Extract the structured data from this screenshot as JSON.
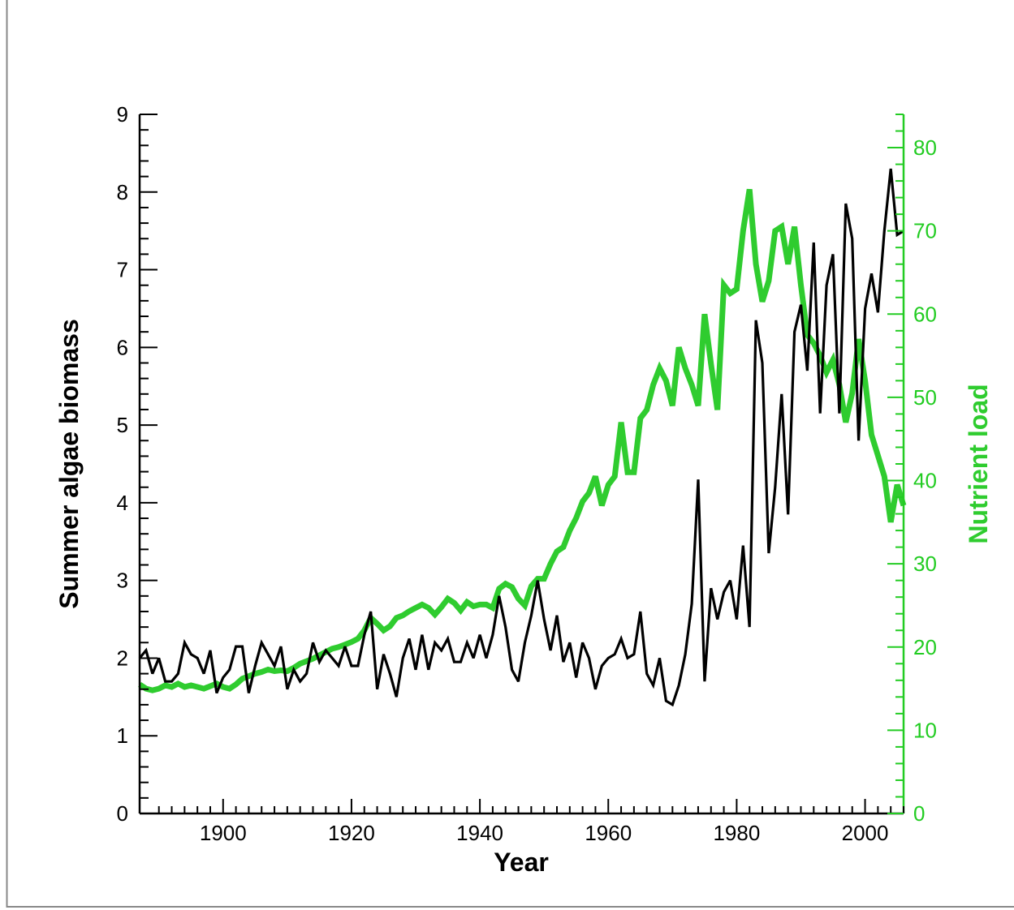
{
  "chart_data": {
    "type": "line",
    "title": "",
    "xlabel": "Year",
    "ylabel": "Summer algae biomass",
    "y2label": "Nutrient load",
    "xlim": [
      1887,
      2006
    ],
    "ylim": [
      0,
      9
    ],
    "y2lim": [
      0,
      84
    ],
    "x_ticks": [
      1900,
      1920,
      1940,
      1960,
      1980,
      2000
    ],
    "y_ticks": [
      0,
      1,
      2,
      3,
      4,
      5,
      6,
      7,
      8,
      9
    ],
    "y2_ticks": [
      0,
      10,
      20,
      30,
      40,
      50,
      60,
      70,
      80
    ],
    "grid": false,
    "legend": "none",
    "colors": {
      "biomass": "#000000",
      "nutrient": "#2fcc2f",
      "axis2": "#22cc22"
    },
    "series": [
      {
        "axis": "left",
        "x": [
          1887,
          1888,
          1889,
          1890,
          1891,
          1892,
          1893,
          1894,
          1895,
          1896,
          1897,
          1898,
          1899,
          1900,
          1901,
          1902,
          1903,
          1904,
          1905,
          1906,
          1907,
          1908,
          1909,
          1910,
          1911,
          1912,
          1913,
          1914,
          1915,
          1916,
          1917,
          1918,
          1919,
          1920,
          1921,
          1922,
          1923,
          1924,
          1925,
          1926,
          1927,
          1928,
          1929,
          1930,
          1931,
          1932,
          1933,
          1934,
          1935,
          1936,
          1937,
          1938,
          1939,
          1940,
          1941,
          1942,
          1943,
          1944,
          1945,
          1946,
          1947,
          1948,
          1949,
          1950,
          1951,
          1952,
          1953,
          1954,
          1955,
          1956,
          1957,
          1958,
          1959,
          1960,
          1961,
          1962,
          1963,
          1964,
          1965,
          1966,
          1967,
          1968,
          1969,
          1970,
          1971,
          1972,
          1973,
          1974,
          1975,
          1976,
          1977,
          1978,
          1979,
          1980,
          1981,
          1982,
          1983,
          1984,
          1985,
          1986,
          1987,
          1988,
          1989,
          1990,
          1991,
          1992,
          1993,
          1994,
          1995,
          1996,
          1997,
          1998,
          1999,
          2000,
          2001,
          2002,
          2003,
          2004,
          2005,
          2006
        ],
        "values": [
          2.0,
          2.1,
          1.8,
          2.0,
          1.7,
          1.7,
          1.8,
          2.2,
          2.05,
          2.0,
          1.8,
          2.1,
          1.55,
          1.75,
          1.85,
          2.15,
          2.15,
          1.55,
          1.9,
          2.2,
          2.05,
          1.9,
          2.15,
          1.6,
          1.85,
          1.7,
          1.8,
          2.2,
          1.95,
          2.1,
          2.0,
          1.9,
          2.15,
          1.9,
          1.9,
          2.3,
          2.6,
          1.6,
          2.05,
          1.8,
          1.5,
          2.0,
          2.25,
          1.85,
          2.3,
          1.85,
          2.2,
          2.1,
          2.25,
          1.95,
          1.95,
          2.2,
          2.0,
          2.3,
          2.0,
          2.3,
          2.8,
          2.4,
          1.85,
          1.7,
          2.2,
          2.55,
          3.0,
          2.5,
          2.1,
          2.55,
          1.95,
          2.2,
          1.75,
          2.2,
          2.0,
          1.6,
          1.9,
          2.0,
          2.05,
          2.25,
          2.0,
          2.05,
          2.6,
          1.8,
          1.65,
          2.0,
          1.45,
          1.4,
          1.65,
          2.05,
          2.7,
          4.3,
          1.7,
          2.9,
          2.5,
          2.85,
          3.0,
          2.5,
          3.45,
          2.4,
          6.35,
          5.8,
          3.35,
          4.2,
          5.4,
          3.85,
          6.2,
          6.55,
          5.7,
          7.35,
          5.15,
          6.8,
          7.2,
          5.15,
          7.85,
          7.4,
          4.8,
          6.5,
          6.95,
          6.45,
          7.5,
          8.3,
          7.45,
          7.5
        ]
      },
      {
        "axis": "right",
        "x": [
          1887,
          1888,
          1889,
          1890,
          1891,
          1892,
          1893,
          1894,
          1895,
          1896,
          1897,
          1898,
          1899,
          1900,
          1901,
          1902,
          1903,
          1904,
          1905,
          1906,
          1907,
          1908,
          1909,
          1910,
          1911,
          1912,
          1913,
          1914,
          1915,
          1916,
          1917,
          1918,
          1919,
          1920,
          1921,
          1922,
          1923,
          1924,
          1925,
          1926,
          1927,
          1928,
          1929,
          1930,
          1931,
          1932,
          1933,
          1934,
          1935,
          1936,
          1937,
          1938,
          1939,
          1940,
          1941,
          1942,
          1943,
          1944,
          1945,
          1946,
          1947,
          1948,
          1949,
          1950,
          1951,
          1952,
          1953,
          1954,
          1955,
          1956,
          1957,
          1958,
          1959,
          1960,
          1961,
          1962,
          1963,
          1964,
          1965,
          1966,
          1967,
          1968,
          1969,
          1970,
          1971,
          1972,
          1973,
          1974,
          1975,
          1976,
          1977,
          1978,
          1979,
          1980,
          1981,
          1982,
          1983,
          1984,
          1985,
          1986,
          1987,
          1988,
          1989,
          1990,
          1991,
          1992,
          1993,
          1994,
          1995,
          1996,
          1997,
          1998,
          1999,
          2000,
          2001,
          2002,
          2003,
          2004,
          2005,
          2006
        ],
        "values": [
          15.5,
          15.0,
          14.8,
          15.0,
          15.4,
          15.2,
          15.6,
          15.2,
          15.4,
          15.2,
          15.0,
          15.3,
          15.6,
          15.2,
          15.0,
          15.5,
          16.2,
          16.5,
          16.8,
          17.0,
          17.3,
          17.1,
          17.2,
          17.1,
          17.5,
          18.0,
          18.3,
          18.6,
          19.0,
          19.4,
          19.8,
          20.0,
          20.3,
          20.6,
          21.0,
          22.0,
          23.5,
          22.8,
          22.0,
          22.5,
          23.5,
          23.8,
          24.3,
          24.7,
          25.1,
          24.7,
          23.9,
          24.8,
          25.8,
          25.3,
          24.4,
          25.4,
          24.9,
          25.1,
          25.1,
          24.7,
          27.0,
          27.6,
          27.2,
          25.8,
          25.0,
          27.3,
          28.2,
          28.2,
          30.0,
          31.5,
          32.0,
          34.0,
          35.5,
          37.5,
          38.5,
          40.5,
          37.0,
          39.5,
          40.5,
          47.0,
          41.0,
          41.0,
          47.5,
          48.5,
          51.5,
          53.5,
          52.0,
          49.0,
          56.0,
          53.5,
          51.5,
          49.0,
          60.0,
          54.0,
          48.5,
          63.5,
          62.5,
          63.0,
          70.0,
          75.0,
          66.0,
          61.5,
          64.0,
          70.0,
          70.5,
          66.0,
          70.5,
          63.5,
          57.5,
          56.5,
          55.0,
          53.0,
          54.5,
          51.5,
          47.0,
          50.5,
          57.0,
          52.0,
          45.5,
          43.0,
          40.5,
          35.0,
          39.5,
          37.0
        ]
      }
    ]
  }
}
